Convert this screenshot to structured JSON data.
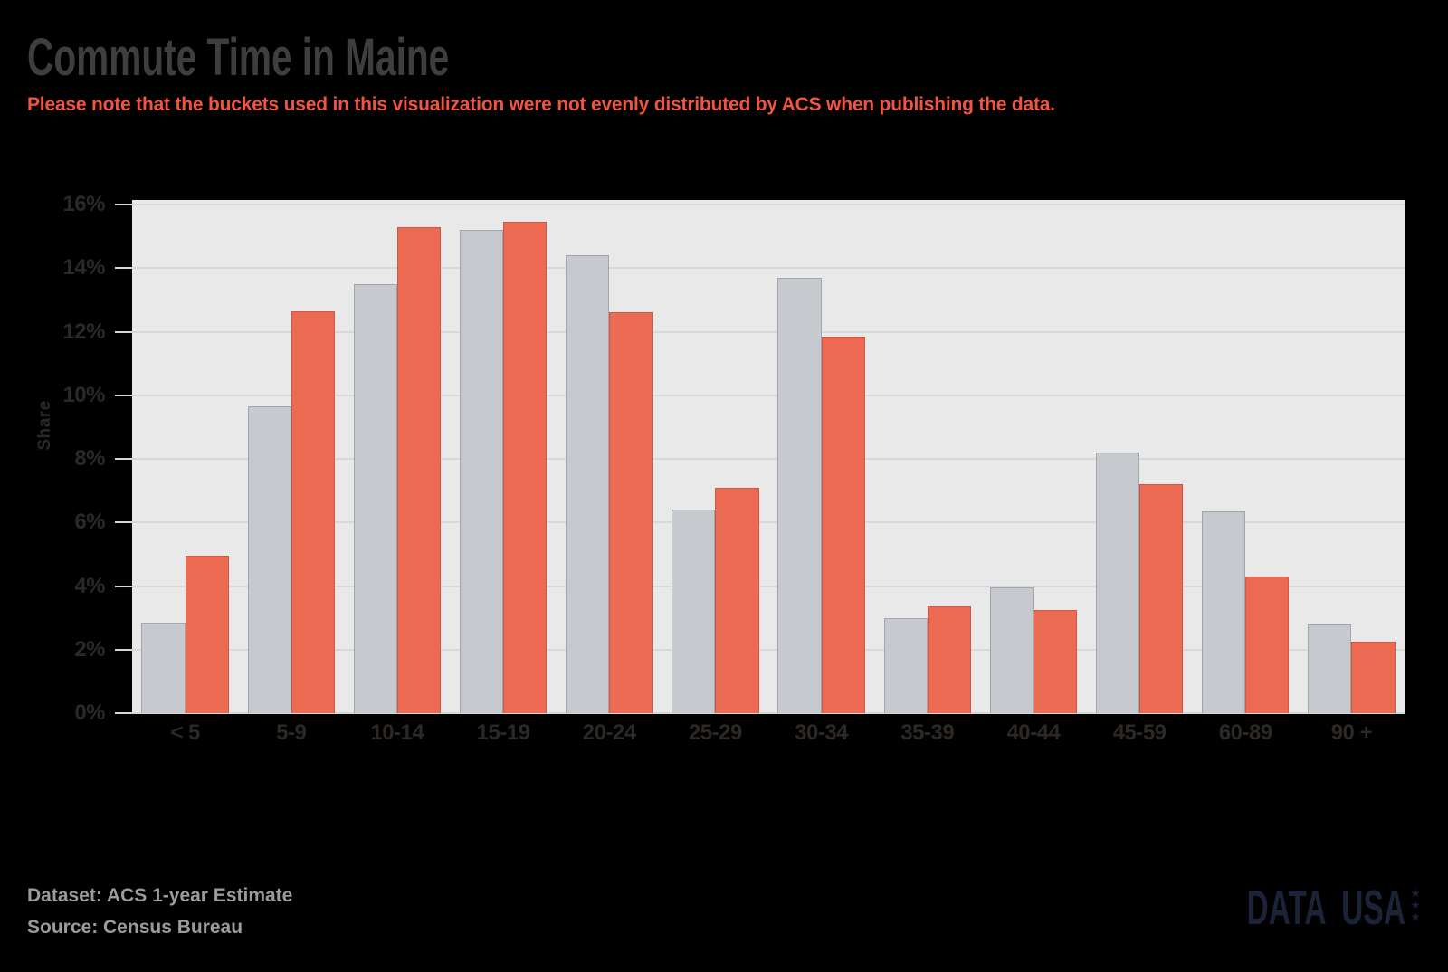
{
  "page": {
    "background": "#000000"
  },
  "header": {
    "title": "Commute Time in Maine",
    "subtitle": "Please note that the buckets used in this visualization were not evenly distributed by ACS when publishing the data.",
    "title_color": "#3e3e3e",
    "subtitle_color": "#f2543e"
  },
  "chart_data": {
    "type": "bar",
    "categories": [
      "< 5",
      "5-9",
      "10-14",
      "15-19",
      "20-24",
      "25-29",
      "30-34",
      "35-39",
      "40-44",
      "45-59",
      "60-89",
      "90 +"
    ],
    "series": [
      {
        "name": "gray",
        "color": "#c6c9ce",
        "border_color": "#a2a6ac",
        "values": [
          2.85,
          9.65,
          13.5,
          15.2,
          14.4,
          6.4,
          13.7,
          3.0,
          3.95,
          8.2,
          6.35,
          2.8
        ]
      },
      {
        "name": "orange",
        "color": "#ec6a52",
        "border_color": "#d05843",
        "values": [
          4.95,
          12.65,
          15.3,
          15.45,
          12.6,
          7.1,
          11.85,
          3.35,
          3.25,
          7.2,
          4.3,
          2.25
        ]
      }
    ],
    "title": "Commute Time in Maine",
    "xlabel": "",
    "ylabel": "Share",
    "y_ticks": [
      "0%",
      "2%",
      "4%",
      "6%",
      "8%",
      "10%",
      "12%",
      "14%",
      "16%"
    ],
    "ylim": [
      0,
      16
    ],
    "grid": true,
    "legend": "none",
    "plot_bg": "#e9e9e9",
    "grid_color": "#d8d8d8",
    "tick_label_color": "#2b2825"
  },
  "footer": {
    "dataset_label": "Dataset: ACS 1-year Estimate",
    "source_label": "Source: Census Bureau",
    "color": "#9b9b9b"
  },
  "logo": {
    "text": "DATA USA",
    "stars": [
      "★",
      "★",
      "★"
    ],
    "color": "#1b2437"
  }
}
